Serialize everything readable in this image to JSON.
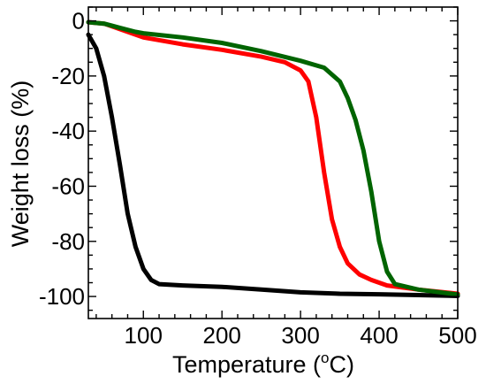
{
  "chart_data": {
    "type": "line",
    "title": "",
    "xlabel": "Temperature (",
    "xlabel_sup": "o",
    "xlabel_unit": "C)",
    "ylabel": "Weight loss (%)",
    "xlim": [
      30,
      500
    ],
    "ylim": [
      -108,
      5
    ],
    "x_ticks": [
      100,
      200,
      300,
      400,
      500
    ],
    "x_tick_labels": [
      "100",
      "200",
      "300",
      "400",
      "500"
    ],
    "y_ticks": [
      0,
      -20,
      -40,
      -60,
      -80,
      -100
    ],
    "y_tick_labels": [
      "0",
      "-20",
      "-40",
      "-60",
      "-80",
      "-100"
    ],
    "grid": false,
    "legend": "none",
    "series": [
      {
        "color": "#000000",
        "points": [
          [
            30,
            -5
          ],
          [
            40,
            -10
          ],
          [
            50,
            -20
          ],
          [
            60,
            -35
          ],
          [
            70,
            -52
          ],
          [
            80,
            -70
          ],
          [
            90,
            -82
          ],
          [
            100,
            -90
          ],
          [
            110,
            -94
          ],
          [
            120,
            -95.5
          ],
          [
            150,
            -96
          ],
          [
            200,
            -96.5
          ],
          [
            250,
            -97.5
          ],
          [
            300,
            -98.5
          ],
          [
            350,
            -99
          ],
          [
            400,
            -99.2
          ],
          [
            450,
            -99.5
          ],
          [
            500,
            -99.8
          ]
        ]
      },
      {
        "color": "#ff0000",
        "points": [
          [
            30,
            -0.5
          ],
          [
            50,
            -1
          ],
          [
            70,
            -3
          ],
          [
            90,
            -5
          ],
          [
            100,
            -6
          ],
          [
            150,
            -8.5
          ],
          [
            200,
            -10.5
          ],
          [
            250,
            -13
          ],
          [
            280,
            -15
          ],
          [
            300,
            -18
          ],
          [
            310,
            -22
          ],
          [
            320,
            -35
          ],
          [
            330,
            -55
          ],
          [
            340,
            -72
          ],
          [
            350,
            -82
          ],
          [
            360,
            -88
          ],
          [
            375,
            -92
          ],
          [
            390,
            -94
          ],
          [
            410,
            -96
          ],
          [
            450,
            -97.5
          ],
          [
            500,
            -99
          ]
        ]
      },
      {
        "color": "#006400",
        "points": [
          [
            30,
            -0.5
          ],
          [
            50,
            -1
          ],
          [
            70,
            -2.5
          ],
          [
            90,
            -4
          ],
          [
            100,
            -4.5
          ],
          [
            150,
            -6
          ],
          [
            200,
            -8
          ],
          [
            250,
            -11
          ],
          [
            300,
            -14.5
          ],
          [
            330,
            -17
          ],
          [
            350,
            -22
          ],
          [
            360,
            -28
          ],
          [
            370,
            -36
          ],
          [
            380,
            -47
          ],
          [
            390,
            -62
          ],
          [
            400,
            -80
          ],
          [
            410,
            -91
          ],
          [
            420,
            -95.5
          ],
          [
            450,
            -97.5
          ],
          [
            500,
            -99.3
          ]
        ]
      }
    ]
  }
}
